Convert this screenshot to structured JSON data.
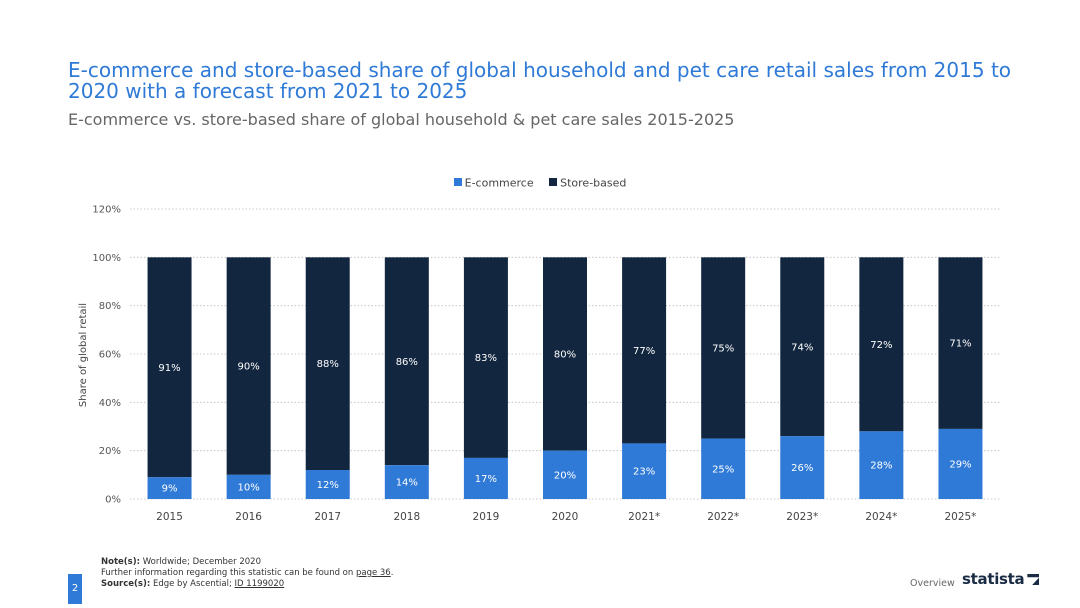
{
  "header": {
    "title": "E-commerce and store-based share of global household and pet care retail sales from 2015 to 2020 with a forecast from 2021 to 2025",
    "subtitle": "E-commerce vs. store-based share of global household & pet care sales 2015-2025"
  },
  "colors": {
    "ecommerce": "#2f7ad6",
    "store_based": "#12263f",
    "title": "#2f7ad6",
    "grid": "#bbbbbb"
  },
  "chart_data": {
    "type": "bar",
    "stacked": true,
    "categories": [
      "2015",
      "2016",
      "2017",
      "2018",
      "2019",
      "2020",
      "2021*",
      "2022*",
      "2023*",
      "2024*",
      "2025*"
    ],
    "series": [
      {
        "name": "E-commerce",
        "values": [
          9,
          10,
          12,
          14,
          17,
          20,
          23,
          25,
          26,
          28,
          29
        ]
      },
      {
        "name": "Store-based",
        "values": [
          91,
          90,
          88,
          86,
          83,
          80,
          77,
          75,
          74,
          72,
          71
        ]
      }
    ],
    "value_suffix": "%",
    "ylabel": "Share of global retail",
    "ylim": [
      0,
      120
    ],
    "yticks": [
      "0%",
      "20%",
      "40%",
      "60%",
      "80%",
      "100%",
      "120%"
    ],
    "grid": true,
    "legend_position": "top-center"
  },
  "footer": {
    "notes_label": "Note(s):",
    "notes_text": "Worldwide; December 2020",
    "further_info_text": "Further information regarding this statistic can be found on",
    "further_info_link": "page 36",
    "further_info_end": ".",
    "sources_label": "Source(s):",
    "sources_text": "Edge by Ascential;",
    "sources_link": "ID 1199020",
    "page_number": "2",
    "overview_label": "Overview",
    "logo_text": "statista"
  }
}
